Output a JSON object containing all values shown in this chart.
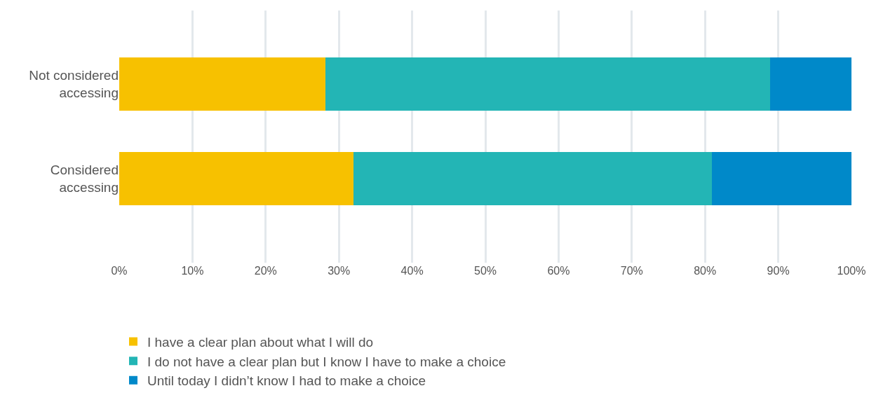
{
  "chart_data": {
    "type": "bar",
    "orientation": "horizontal",
    "stacked": true,
    "categories": [
      "Not considered accessing",
      "Considered accessing"
    ],
    "series": [
      {
        "name": "I have a clear plan about what I will do",
        "color": "#f7c100",
        "values": [
          28.2,
          32.0
        ]
      },
      {
        "name": "I do not have a clear plan but I know I have to make a choice",
        "color": "#23b5b5",
        "values": [
          60.7,
          48.9
        ]
      },
      {
        "name": "Until today I didn’t know I had to make a choice",
        "color": "#0089c9",
        "values": [
          11.1,
          19.1
        ]
      }
    ],
    "xlim": [
      0,
      100
    ],
    "xticks": [
      {
        "value": 0,
        "label": "0%"
      },
      {
        "value": 10,
        "label": "10%"
      },
      {
        "value": 20,
        "label": "20%"
      },
      {
        "value": 30,
        "label": "30%"
      },
      {
        "value": 40,
        "label": "40%"
      },
      {
        "value": 50,
        "label": "50%"
      },
      {
        "value": 60,
        "label": "60%"
      },
      {
        "value": 70,
        "label": "70%"
      },
      {
        "value": 80,
        "label": "80%"
      },
      {
        "value": 90,
        "label": "90%"
      },
      {
        "value": 100,
        "label": "100%"
      }
    ],
    "grid": "x",
    "legend": "bottom"
  }
}
